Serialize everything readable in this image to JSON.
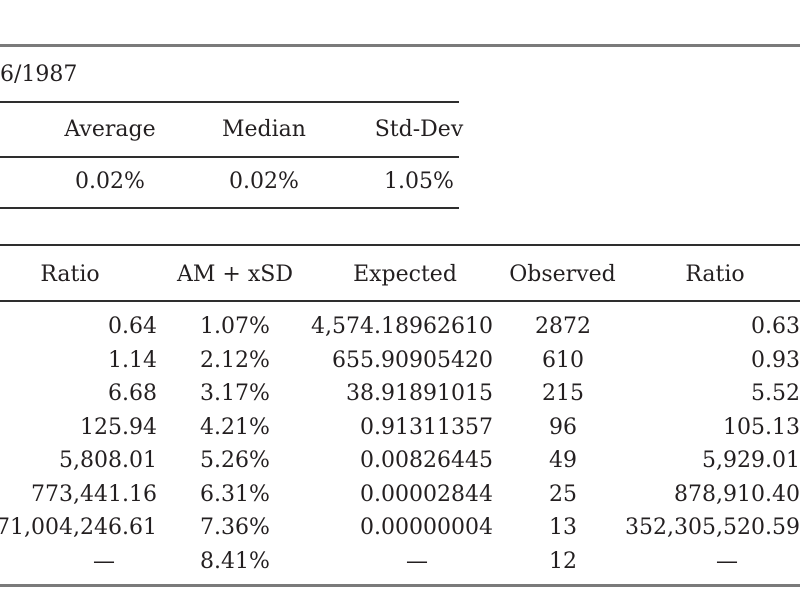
{
  "top_fragment": "6/1987",
  "summary": {
    "headers": [
      "Average",
      "Median",
      "Std-Dev"
    ],
    "values": [
      "0.02%",
      "0.02%",
      "1.05%"
    ]
  },
  "table": {
    "headers": {
      "ratio_left": "Ratio",
      "am_xsd": "AM + xSD",
      "expected": "Expected",
      "observed": "Observed",
      "ratio_right": "Ratio"
    },
    "rows": [
      {
        "ratio_left": "0.64",
        "am_xsd": "1.07%",
        "expected": "4,574.18962610",
        "observed": "2872",
        "ratio_right": "0.63"
      },
      {
        "ratio_left": "1.14",
        "am_xsd": "2.12%",
        "expected": "655.90905420",
        "observed": "610",
        "ratio_right": "0.93"
      },
      {
        "ratio_left": "6.68",
        "am_xsd": "3.17%",
        "expected": "38.91891015",
        "observed": "215",
        "ratio_right": "5.52"
      },
      {
        "ratio_left": "125.94",
        "am_xsd": "4.21%",
        "expected": "0.91311357",
        "observed": "96",
        "ratio_right": "105.13"
      },
      {
        "ratio_left": "5,808.01",
        "am_xsd": "5.26%",
        "expected": "0.00826445",
        "observed": "49",
        "ratio_right": "5,929.01"
      },
      {
        "ratio_left": "773,441.16",
        "am_xsd": "6.31%",
        "expected": "0.00002844",
        "observed": "25",
        "ratio_right": "878,910.40"
      },
      {
        "ratio_left": "71,004,246.61",
        "am_xsd": "7.36%",
        "expected": "0.00000004",
        "observed": "13",
        "ratio_right": "352,305,520.59"
      },
      {
        "ratio_left": "—",
        "am_xsd": "8.41%",
        "expected": "—",
        "observed": "12",
        "ratio_right": "—"
      }
    ]
  }
}
